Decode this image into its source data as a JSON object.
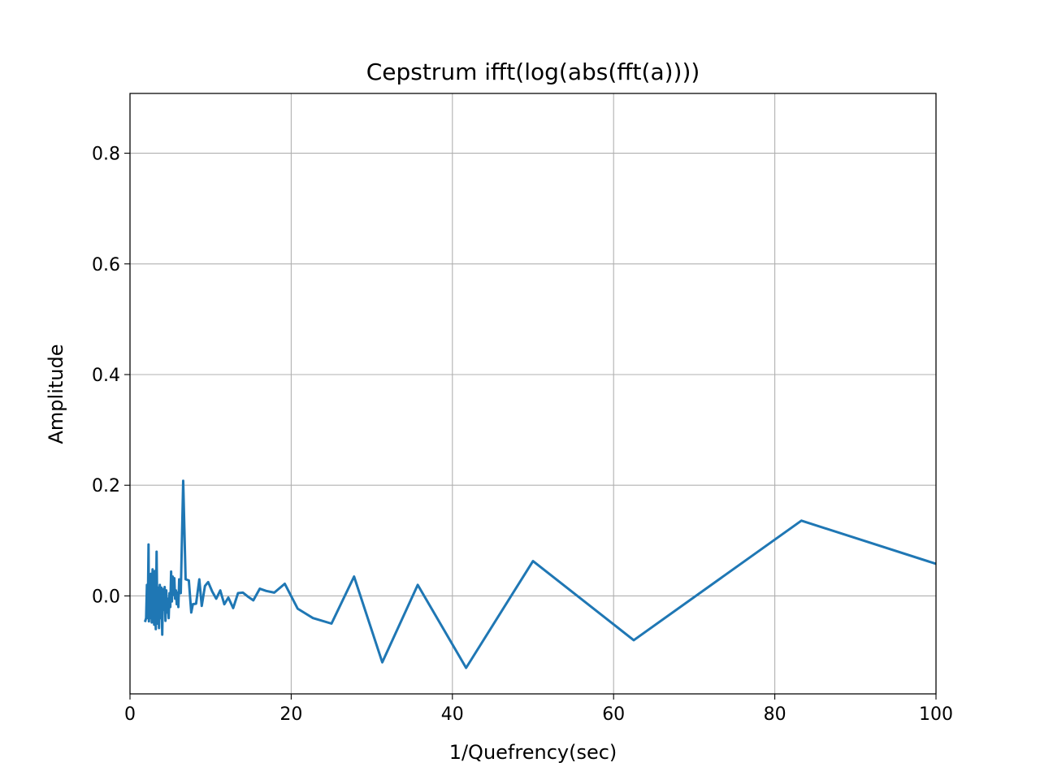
{
  "chart_data": {
    "type": "line",
    "title": "Cepstrum  ifft(log(abs(fft(a))))",
    "xlabel": "1/Quefrency(sec)",
    "ylabel": "Amplitude",
    "xlim": [
      0,
      100
    ],
    "ylim": [
      -0.177,
      0.908
    ],
    "x_ticks": [
      0,
      20,
      40,
      60,
      80,
      100
    ],
    "y_ticks": [
      0.0,
      0.2,
      0.4,
      0.6,
      0.8
    ],
    "grid": true,
    "series": [
      {
        "color": "#1f77b4",
        "x": [
          1.9,
          2.0,
          2.1,
          2.2,
          2.3,
          2.35,
          2.4,
          2.5,
          2.6,
          2.7,
          2.8,
          2.9,
          3.0,
          3.1,
          3.2,
          3.3,
          3.4,
          3.5,
          3.6,
          3.7,
          3.8,
          3.9,
          4.0,
          4.1,
          4.2,
          4.3,
          4.4,
          4.5,
          4.6,
          4.7,
          4.8,
          4.9,
          5.0,
          5.1,
          5.2,
          5.3,
          5.4,
          5.5,
          5.6,
          5.7,
          5.8,
          5.9,
          6.0,
          6.1,
          6.3,
          6.6,
          6.9,
          7.3,
          7.6,
          7.8,
          8.2,
          8.6,
          8.9,
          9.3,
          9.7,
          10.2,
          10.7,
          11.2,
          11.7,
          12.2,
          12.8,
          13.4,
          14.0,
          14.7,
          15.3,
          16.1,
          16.9,
          17.9,
          19.2,
          20.8,
          22.7,
          25.0,
          27.8,
          31.3,
          35.7,
          41.7,
          50.0,
          62.5,
          83.3,
          100.0
        ],
        "y": [
          -0.045,
          -0.04,
          0.02,
          -0.04,
          0.093,
          -0.046,
          0.01,
          -0.04,
          0.04,
          -0.048,
          0.048,
          -0.03,
          -0.052,
          0.045,
          -0.06,
          0.08,
          -0.05,
          0.015,
          -0.058,
          0.02,
          -0.04,
          0.015,
          -0.07,
          0.012,
          -0.025,
          0.016,
          -0.045,
          0.01,
          -0.03,
          -0.005,
          -0.04,
          0.005,
          -0.02,
          0.044,
          -0.01,
          0.035,
          0.002,
          0.032,
          -0.005,
          0.01,
          -0.015,
          0.006,
          -0.02,
          0.03,
          0.005,
          0.208,
          0.03,
          0.028,
          -0.03,
          -0.015,
          -0.014,
          0.03,
          -0.018,
          0.018,
          0.025,
          0.008,
          -0.005,
          0.01,
          -0.015,
          -0.003,
          -0.022,
          0.005,
          0.006,
          -0.002,
          -0.008,
          0.013,
          0.009,
          0.006,
          0.022,
          -0.023,
          -0.04,
          -0.05,
          0.035,
          -0.12,
          0.02,
          -0.13,
          0.063,
          -0.08,
          0.136,
          0.058
        ]
      }
    ]
  }
}
